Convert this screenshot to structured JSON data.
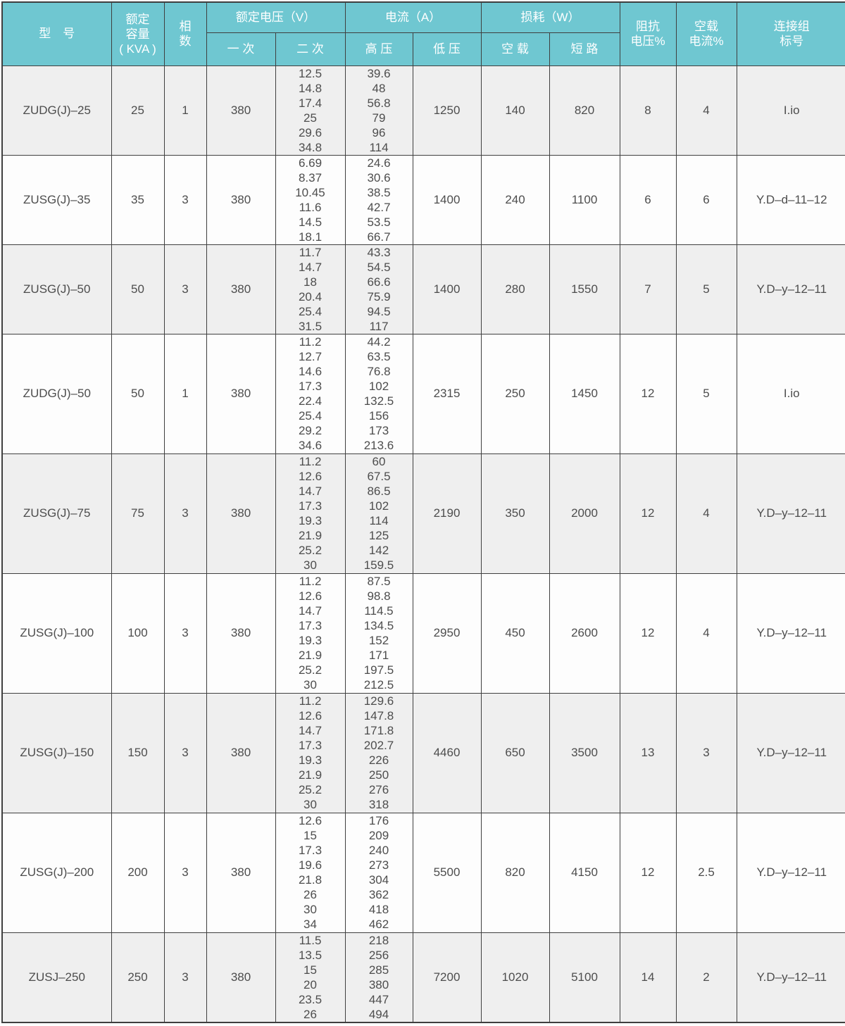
{
  "colors": {
    "header_bg": "#6fc7d1",
    "header_text": "#ffffff",
    "row_bg": "#fdfdfd",
    "row_alt_bg": "#efefef",
    "border": "#3f3f3f",
    "body_text": "#4d4d4d"
  },
  "header": {
    "model": "型　号",
    "capacity": [
      "额定",
      "容量",
      "( KVA )"
    ],
    "phases": [
      "相",
      "数"
    ],
    "voltage_group": "额定电压（V）",
    "primary": "一 次",
    "secondary": "二 次",
    "current_group": "电流（A）",
    "hv": "高 压",
    "lv": "低 压",
    "loss_group": "损耗（W）",
    "noload": "空 载",
    "short": "短 路",
    "impedance": [
      "阻抗",
      "电压%"
    ],
    "noload_current": [
      "空载",
      "电流%"
    ],
    "connection": [
      "连接组",
      "标号"
    ]
  },
  "rows": [
    {
      "model": "ZUDG(J)–25",
      "capacity": "25",
      "phases": "1",
      "primary": "380",
      "secondary": [
        "12.5",
        "14.8",
        "17.4",
        "25",
        "29.6",
        "34.8"
      ],
      "hv": [
        "39.6",
        "48",
        "56.8",
        "79",
        "96",
        "114"
      ],
      "lv": "1250",
      "noload_loss": "140",
      "short_loss": "820",
      "impedance": "8",
      "noload_current": "4",
      "connection": "I.io"
    },
    {
      "model": "ZUSG(J)–35",
      "capacity": "35",
      "phases": "3",
      "primary": "380",
      "secondary": [
        "6.69",
        "8.37",
        "10.45",
        "11.6",
        "14.5",
        "18.1"
      ],
      "hv": [
        "24.6",
        "30.6",
        "38.5",
        "42.7",
        "53.5",
        "66.7"
      ],
      "lv": "1400",
      "noload_loss": "240",
      "short_loss": "1100",
      "impedance": "6",
      "noload_current": "6",
      "connection": "Y.D–d–11–12"
    },
    {
      "model": "ZUSG(J)–50",
      "capacity": "50",
      "phases": "3",
      "primary": "380",
      "secondary": [
        "11.7",
        "14.7",
        "18",
        "20.4",
        "25.4",
        "31.5"
      ],
      "hv": [
        "43.3",
        "54.5",
        "66.6",
        "75.9",
        "94.5",
        "117"
      ],
      "lv": "1400",
      "noload_loss": "280",
      "short_loss": "1550",
      "impedance": "7",
      "noload_current": "5",
      "connection": "Y.D–y–12–11"
    },
    {
      "model": "ZUDG(J)–50",
      "capacity": "50",
      "phases": "1",
      "primary": "380",
      "secondary": [
        "11.2",
        "12.7",
        "14.6",
        "17.3",
        "22.4",
        "25.4",
        "29.2",
        "34.6"
      ],
      "hv": [
        "44.2",
        "63.5",
        "76.8",
        "102",
        "132.5",
        "156",
        "173",
        "213.6"
      ],
      "lv": "2315",
      "noload_loss": "250",
      "short_loss": "1450",
      "impedance": "12",
      "noload_current": "5",
      "connection": "I.io"
    },
    {
      "model": "ZUSG(J)–75",
      "capacity": "75",
      "phases": "3",
      "primary": "380",
      "secondary": [
        "11.2",
        "12.6",
        "14.7",
        "17.3",
        "19.3",
        "21.9",
        "25.2",
        "30"
      ],
      "hv": [
        "60",
        "67.5",
        "86.5",
        "102",
        "114",
        "125",
        "142",
        "159.5"
      ],
      "lv": "2190",
      "noload_loss": "350",
      "short_loss": "2000",
      "impedance": "12",
      "noload_current": "4",
      "connection": "Y.D–y–12–11"
    },
    {
      "model": "ZUSG(J)–100",
      "capacity": "100",
      "phases": "3",
      "primary": "380",
      "secondary": [
        "11.2",
        "12.6",
        "14.7",
        "17.3",
        "19.3",
        "21.9",
        "25.2",
        "30"
      ],
      "hv": [
        "87.5",
        "98.8",
        "114.5",
        "134.5",
        "152",
        "171",
        "197.5",
        "212.5"
      ],
      "lv": "2950",
      "noload_loss": "450",
      "short_loss": "2600",
      "impedance": "12",
      "noload_current": "4",
      "connection": "Y.D–y–12–11"
    },
    {
      "model": "ZUSG(J)–150",
      "capacity": "150",
      "phases": "3",
      "primary": "380",
      "secondary": [
        "11.2",
        "12.6",
        "14.7",
        "17.3",
        "19.3",
        "21.9",
        "25.2",
        "30"
      ],
      "hv": [
        "129.6",
        "147.8",
        "171.8",
        "202.7",
        "226",
        "250",
        "276",
        "318"
      ],
      "lv": "4460",
      "noload_loss": "650",
      "short_loss": "3500",
      "impedance": "13",
      "noload_current": "3",
      "connection": "Y.D–y–12–11"
    },
    {
      "model": "ZUSG(J)–200",
      "capacity": "200",
      "phases": "3",
      "primary": "380",
      "secondary": [
        "12.6",
        "15",
        "17.3",
        "19.6",
        "21.8",
        "26",
        "30",
        "34"
      ],
      "hv": [
        "176",
        "209",
        "240",
        "273",
        "304",
        "362",
        "418",
        "462"
      ],
      "lv": "5500",
      "noload_loss": "820",
      "short_loss": "4150",
      "impedance": "12",
      "noload_current": "2.5",
      "connection": "Y.D–y–12–11"
    },
    {
      "model": "ZUSJ–250",
      "capacity": "250",
      "phases": "3",
      "primary": "380",
      "secondary": [
        "11.5",
        "13.5",
        "15",
        "20",
        "23.5",
        "26"
      ],
      "hv": [
        "218",
        "256",
        "285",
        "380",
        "447",
        "494"
      ],
      "lv": "7200",
      "noload_loss": "1020",
      "short_loss": "5100",
      "impedance": "14",
      "noload_current": "2",
      "connection": "Y.D–y–12–11"
    }
  ]
}
